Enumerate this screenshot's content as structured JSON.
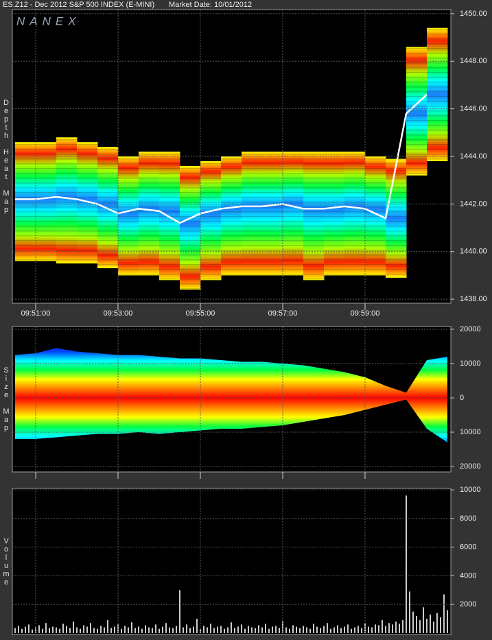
{
  "chart_data": [
    {
      "type": "heatmap",
      "title": "ES.Z12 - Dec 2012 S&P 500 INDEX (E-MINI)",
      "subtitle": "Market Date: 10/01/2012",
      "logo": "NANEX",
      "panel_label": "Depth Heat Map",
      "x": [
        3030,
        3060,
        3090,
        3120,
        3150,
        3180,
        3210,
        3240,
        3270,
        3300,
        3330,
        3360,
        3390,
        3420,
        3450,
        3480,
        3510,
        3540,
        3570,
        3600,
        3630
      ],
      "low": [
        1439.6,
        1439.6,
        1439.5,
        1439.5,
        1439.3,
        1439.0,
        1439.0,
        1438.8,
        1438.4,
        1438.8,
        1439.0,
        1439.0,
        1439.0,
        1439.0,
        1438.8,
        1439.0,
        1439.0,
        1439.0,
        1438.9,
        1443.2,
        1443.8
      ],
      "high": [
        1444.6,
        1444.6,
        1444.8,
        1444.6,
        1444.4,
        1444.0,
        1444.2,
        1444.2,
        1443.6,
        1443.8,
        1444.0,
        1444.2,
        1444.2,
        1444.2,
        1444.2,
        1444.2,
        1444.2,
        1444.0,
        1443.9,
        1448.6,
        1449.4
      ],
      "mid": [
        1442.2,
        1442.2,
        1442.3,
        1442.2,
        1442.0,
        1441.6,
        1441.8,
        1441.7,
        1441.2,
        1441.6,
        1441.8,
        1441.9,
        1441.9,
        1442.0,
        1441.8,
        1441.8,
        1441.9,
        1441.8,
        1441.4,
        1445.8,
        1446.6
      ],
      "palette": [
        "#1a7fff",
        "#00ffff",
        "#00ff40",
        "#b0ff00",
        "#ff2000",
        "#ffff00"
      ],
      "mid_color": "#ffffff",
      "xlim": [
        3026,
        3665
      ],
      "xticks": [
        {
          "value": 3060,
          "label": "09:51:00"
        },
        {
          "value": 3180,
          "label": "09:53:00"
        },
        {
          "value": 3300,
          "label": "09:55:00"
        },
        {
          "value": 3420,
          "label": "09:57:00"
        },
        {
          "value": 3540,
          "label": "09:59:00"
        }
      ],
      "ylim": [
        1437.83,
        1450.17
      ],
      "yticks": [
        {
          "value": 1438,
          "label": "1438.00"
        },
        {
          "value": 1440,
          "label": "1440.00"
        },
        {
          "value": 1442,
          "label": "1442.00"
        },
        {
          "value": 1444,
          "label": "1444.00"
        },
        {
          "value": 1446,
          "label": "1446.00"
        },
        {
          "value": 1448,
          "label": "1448.00"
        },
        {
          "value": 1450,
          "label": "1450.00"
        }
      ],
      "grid": true
    },
    {
      "type": "area",
      "panel_label": "Size Map",
      "x": [
        3030,
        3060,
        3090,
        3120,
        3150,
        3180,
        3210,
        3240,
        3270,
        3300,
        3330,
        3360,
        3390,
        3420,
        3450,
        3480,
        3510,
        3540,
        3570,
        3600,
        3630,
        3660
      ],
      "bid_values": [
        12500,
        13000,
        14500,
        13500,
        13000,
        12500,
        12500,
        12000,
        11500,
        11500,
        11000,
        10500,
        10500,
        10000,
        9500,
        8500,
        7500,
        6000,
        3500,
        1500,
        11000,
        12000
      ],
      "ask_values": [
        -12000,
        -12000,
        -11500,
        -11000,
        -10500,
        -10500,
        -10000,
        -10500,
        -10000,
        -9500,
        -9000,
        -9000,
        -8500,
        -8000,
        -7000,
        -6000,
        -5000,
        -3500,
        -2000,
        -500,
        -9000,
        -13000
      ],
      "palette": [
        "#ff0000",
        "#ff8000",
        "#ffff00",
        "#00ff40",
        "#00ffff",
        "#0040ff"
      ],
      "xlim": [
        3026,
        3665
      ],
      "ylim": [
        -21600,
        20800
      ],
      "yticks": [
        20000,
        10000,
        0,
        {
          "value": -10000,
          "label": "10000"
        },
        {
          "value": -20000,
          "label": "20000"
        }
      ],
      "grid": true
    },
    {
      "type": "bar",
      "panel_label": "Volume",
      "color": "#ffffff",
      "x": [
        3030,
        3035,
        3040,
        3045,
        3050,
        3055,
        3060,
        3065,
        3070,
        3075,
        3080,
        3085,
        3090,
        3095,
        3100,
        3105,
        3110,
        3115,
        3120,
        3125,
        3130,
        3135,
        3140,
        3145,
        3150,
        3155,
        3160,
        3165,
        3170,
        3175,
        3180,
        3185,
        3190,
        3195,
        3200,
        3205,
        3210,
        3215,
        3220,
        3225,
        3230,
        3235,
        3240,
        3245,
        3250,
        3255,
        3260,
        3265,
        3270,
        3275,
        3280,
        3285,
        3290,
        3295,
        3300,
        3305,
        3310,
        3315,
        3320,
        3325,
        3330,
        3335,
        3340,
        3345,
        3350,
        3355,
        3360,
        3365,
        3370,
        3375,
        3380,
        3385,
        3390,
        3395,
        3400,
        3405,
        3410,
        3415,
        3420,
        3425,
        3430,
        3435,
        3440,
        3445,
        3450,
        3455,
        3460,
        3465,
        3470,
        3475,
        3480,
        3485,
        3490,
        3495,
        3500,
        3505,
        3510,
        3515,
        3520,
        3525,
        3530,
        3535,
        3540,
        3545,
        3550,
        3555,
        3560,
        3565,
        3570,
        3575,
        3580,
        3585,
        3590,
        3595,
        3600,
        3605,
        3610,
        3615,
        3620,
        3625,
        3630,
        3635,
        3640,
        3645,
        3650,
        3655,
        3660
      ],
      "values": [
        350,
        500,
        300,
        450,
        600,
        250,
        400,
        550,
        300,
        700,
        350,
        450,
        400,
        300,
        650,
        500,
        350,
        800,
        400,
        300,
        550,
        450,
        700,
        350,
        300,
        500,
        400,
        900,
        350,
        450,
        600,
        300,
        500,
        400,
        750,
        350,
        450,
        300,
        550,
        400,
        350,
        600,
        300,
        450,
        700,
        400,
        350,
        500,
        3000,
        400,
        600,
        350,
        450,
        1000,
        300,
        500,
        400,
        650,
        350,
        450,
        500,
        300,
        400,
        750,
        350,
        450,
        600,
        300,
        500,
        400,
        350,
        550,
        400,
        650,
        300,
        450,
        500,
        350,
        800,
        400,
        300,
        550,
        450,
        350,
        500,
        400,
        300,
        650,
        450,
        350,
        500,
        700,
        300,
        400,
        550,
        350,
        450,
        600,
        300,
        400,
        500,
        350,
        700,
        450,
        400,
        600,
        550,
        900,
        500,
        700,
        600,
        800,
        650,
        900,
        9600,
        2900,
        1500,
        1200,
        900,
        1800,
        1000,
        1300,
        800,
        1400,
        1100,
        2700,
        1600
      ],
      "xlim": [
        3026,
        3665
      ],
      "ylim": [
        -100,
        10100
      ],
      "yticks": [
        2000,
        4000,
        6000,
        8000,
        10000
      ],
      "grid": true
    }
  ]
}
